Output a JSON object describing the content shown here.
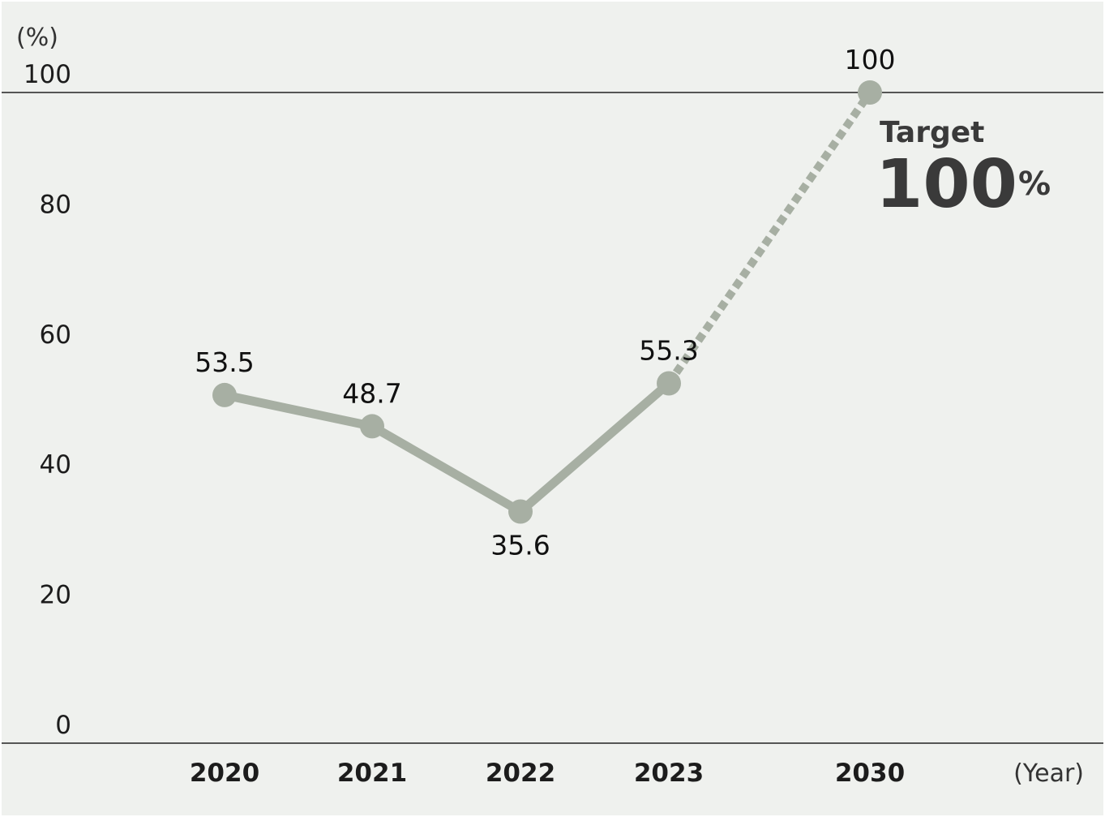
{
  "chart_data": {
    "type": "line",
    "x": [
      "2020",
      "2021",
      "2022",
      "2023",
      "2030"
    ],
    "values": [
      53.5,
      48.7,
      35.6,
      55.3,
      100
    ],
    "value_labels": [
      "53.5",
      "48.7",
      "35.6",
      "55.3",
      "100"
    ],
    "projected_from_index": 3,
    "yunit": "(%)",
    "xunit": "(Year)",
    "ylim": [
      0,
      100
    ],
    "yticks": [
      0,
      20,
      40,
      60,
      80,
      100
    ],
    "ytick_labels": [
      "0",
      "20",
      "40",
      "60",
      "80",
      "100"
    ],
    "grid": false,
    "annotation": {
      "title": "Target",
      "value": "100",
      "unit": "%"
    },
    "colors": {
      "background": "#eff1ee",
      "line": "#a7afa3",
      "axis": "#222222",
      "text": "#1c1c1c",
      "annotation": "#3a3a3a"
    }
  }
}
